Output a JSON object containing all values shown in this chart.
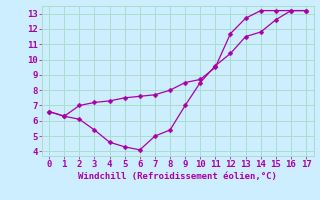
{
  "xlabel": "Windchill (Refroidissement éolien,°C)",
  "bg_color": "#cceeff",
  "grid_color": "#aaddcc",
  "line_color": "#aa00aa",
  "xlim": [
    -0.5,
    17.5
  ],
  "ylim": [
    3.7,
    13.5
  ],
  "xticks": [
    0,
    1,
    2,
    3,
    4,
    5,
    6,
    7,
    8,
    9,
    10,
    11,
    12,
    13,
    14,
    15,
    16,
    17
  ],
  "yticks": [
    4,
    5,
    6,
    7,
    8,
    9,
    10,
    11,
    12,
    13
  ],
  "line1_x": [
    0,
    1,
    2,
    3,
    4,
    5,
    6,
    7,
    8,
    9,
    10,
    11,
    12,
    13,
    14,
    15,
    16,
    17
  ],
  "line1_y": [
    6.6,
    6.3,
    6.1,
    5.4,
    4.6,
    4.3,
    4.1,
    5.0,
    5.4,
    7.0,
    8.5,
    9.6,
    10.4,
    11.5,
    11.8,
    12.6,
    13.2,
    13.2
  ],
  "line2_x": [
    0,
    1,
    2,
    3,
    4,
    5,
    6,
    7,
    8,
    9,
    10,
    11,
    12,
    13,
    14,
    15,
    16,
    17
  ],
  "line2_y": [
    6.6,
    6.3,
    7.0,
    7.2,
    7.3,
    7.5,
    7.6,
    7.7,
    8.0,
    8.5,
    8.7,
    9.5,
    11.7,
    12.7,
    13.2,
    13.2,
    13.2,
    13.2
  ],
  "tick_fontsize": 6.5,
  "xlabel_fontsize": 6.5
}
